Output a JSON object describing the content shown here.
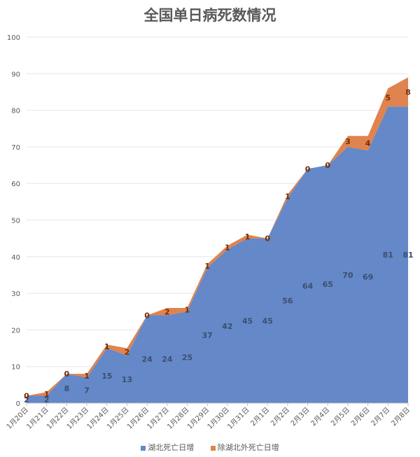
{
  "chart_data": {
    "type": "area",
    "title": "全国单日病死数情况",
    "stacked": true,
    "categories": [
      "1月20日",
      "1月21日",
      "1月22日",
      "1月23日",
      "1月24日",
      "1月25日",
      "1月26日",
      "1月27日",
      "1月28日",
      "1月29日",
      "1月30日",
      "1月31日",
      "2月1日",
      "2月2日",
      "2月3日",
      "2月4日",
      "2月5日",
      "2月6日",
      "2月7日",
      "2月8日"
    ],
    "series": [
      {
        "name": "湖北死亡日增",
        "color": "#6488c8",
        "values": [
          2,
          2,
          8,
          7,
          15,
          13,
          24,
          24,
          25,
          37,
          42,
          45,
          45,
          56,
          64,
          65,
          70,
          69,
          81,
          81
        ]
      },
      {
        "name": "除湖北外死亡日增",
        "color": "#e0834e",
        "values": [
          0,
          1,
          0,
          1,
          1,
          2,
          0,
          2,
          1,
          1,
          1,
          1,
          0,
          1,
          0,
          0,
          3,
          4,
          5,
          8
        ]
      }
    ],
    "ylim": [
      0,
      100
    ],
    "yticks": [
      0,
      10,
      20,
      30,
      40,
      50,
      60,
      70,
      80,
      90,
      100
    ],
    "grid": true,
    "legend_position": "bottom"
  }
}
